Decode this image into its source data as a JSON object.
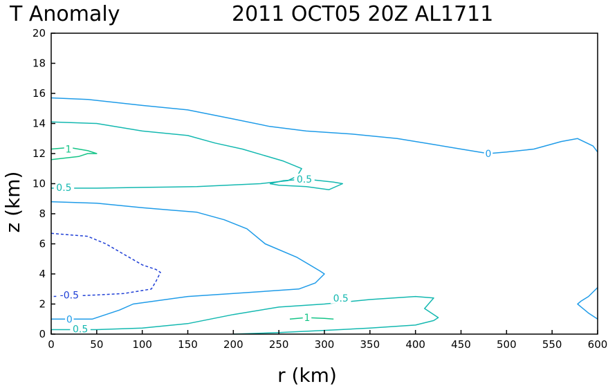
{
  "chart_data": {
    "type": "contour",
    "title": "T Anomaly",
    "subtitle": "2011 OCT05 20Z  AL1711",
    "xlabel": "r (km)",
    "ylabel": "z (km)",
    "xlim": [
      0,
      600
    ],
    "ylim": [
      0,
      20
    ],
    "xticks": [
      "0",
      "50",
      "100",
      "150",
      "200",
      "250",
      "300",
      "350",
      "400",
      "450",
      "500",
      "550",
      "600"
    ],
    "yticks": [
      "0",
      "2",
      "4",
      "6",
      "8",
      "10",
      "12",
      "14",
      "16",
      "18",
      "20"
    ],
    "grid": false,
    "colors": {
      "zero": "#1e9be8",
      "pos_0_5": "#13b8b0",
      "pos_1": "#14c487",
      "neg_0_5": "#1f3fd6"
    },
    "contours": [
      {
        "level": "0",
        "color_key": "zero",
        "dash": false,
        "points": [
          [
            0,
            15.7
          ],
          [
            40,
            15.6
          ],
          [
            100,
            15.2
          ],
          [
            150,
            14.9
          ],
          [
            200,
            14.3
          ],
          [
            240,
            13.8
          ],
          [
            280,
            13.5
          ],
          [
            330,
            13.3
          ],
          [
            380,
            13.0
          ],
          [
            420,
            12.6
          ],
          [
            450,
            12.3
          ],
          [
            480,
            12.0
          ],
          [
            500,
            12.1
          ],
          [
            530,
            12.3
          ],
          [
            560,
            12.8
          ],
          [
            578,
            13.0
          ],
          [
            595,
            12.5
          ],
          [
            600,
            12.1
          ]
        ]
      },
      {
        "level": "0",
        "color_key": "zero",
        "dash": false,
        "points": [
          [
            0,
            8.8
          ],
          [
            50,
            8.7
          ],
          [
            100,
            8.4
          ],
          [
            160,
            8.1
          ],
          [
            190,
            7.6
          ],
          [
            215,
            7.0
          ],
          [
            235,
            6.0
          ],
          [
            270,
            5.1
          ],
          [
            295,
            4.2
          ],
          [
            300,
            4.0
          ],
          [
            290,
            3.4
          ],
          [
            272,
            3.0
          ],
          [
            200,
            2.7
          ],
          [
            150,
            2.5
          ],
          [
            90,
            2.0
          ],
          [
            75,
            1.6
          ],
          [
            45,
            1.0
          ],
          [
            0,
            1.0
          ]
        ]
      },
      {
        "level": "0",
        "color_key": "zero",
        "dash": false,
        "points": [
          [
            600,
            3.1
          ],
          [
            590,
            2.5
          ],
          [
            582,
            2.2
          ],
          [
            578,
            2.0
          ],
          [
            582,
            1.8
          ],
          [
            590,
            1.4
          ],
          [
            600,
            1.0
          ]
        ]
      },
      {
        "level": "0.5",
        "color_key": "pos_0_5",
        "dash": false,
        "points": [
          [
            0,
            14.1
          ],
          [
            50,
            14.0
          ],
          [
            100,
            13.5
          ],
          [
            150,
            13.2
          ],
          [
            180,
            12.7
          ],
          [
            210,
            12.3
          ],
          [
            255,
            11.5
          ],
          [
            275,
            11.0
          ],
          [
            270,
            10.5
          ],
          [
            260,
            10.2
          ],
          [
            230,
            10.0
          ],
          [
            160,
            9.8
          ],
          [
            100,
            9.75
          ],
          [
            50,
            9.7
          ],
          [
            0,
            9.7
          ]
        ]
      },
      {
        "level": "0.5",
        "color_key": "pos_0_5",
        "dash": false,
        "points": [
          [
            240,
            10.0
          ],
          [
            255,
            10.2
          ],
          [
            280,
            10.3
          ],
          [
            310,
            10.1
          ],
          [
            320,
            10.0
          ],
          [
            305,
            9.6
          ],
          [
            280,
            9.8
          ],
          [
            250,
            9.9
          ],
          [
            240,
            10.0
          ]
        ]
      },
      {
        "level": "0.5",
        "color_key": "pos_0_5",
        "dash": false,
        "points": [
          [
            0,
            0.3
          ],
          [
            50,
            0.3
          ],
          [
            100,
            0.4
          ],
          [
            150,
            0.7
          ],
          [
            200,
            1.3
          ],
          [
            250,
            1.8
          ],
          [
            300,
            2.0
          ],
          [
            350,
            2.3
          ],
          [
            400,
            2.5
          ],
          [
            420,
            2.4
          ],
          [
            410,
            1.7
          ],
          [
            420,
            1.3
          ],
          [
            425,
            1.1
          ],
          [
            420,
            0.9
          ],
          [
            400,
            0.6
          ],
          [
            350,
            0.4
          ],
          [
            300,
            0.25
          ],
          [
            250,
            0.1
          ],
          [
            200,
            0.0
          ]
        ]
      },
      {
        "level": "1",
        "color_key": "pos_1",
        "dash": false,
        "points": [
          [
            0,
            11.6
          ],
          [
            30,
            11.8
          ],
          [
            40,
            12.0
          ],
          [
            50,
            12.0
          ],
          [
            40,
            12.2
          ],
          [
            20,
            12.4
          ],
          [
            0,
            12.3
          ]
        ]
      },
      {
        "level": "1",
        "color_key": "pos_1",
        "dash": false,
        "points": [
          [
            262,
            1.0
          ],
          [
            280,
            1.1
          ],
          [
            300,
            1.05
          ],
          [
            310,
            1.0
          ]
        ]
      },
      {
        "level": "-0.5",
        "color_key": "neg_0_5",
        "dash": true,
        "points": [
          [
            0,
            6.7
          ],
          [
            20,
            6.6
          ],
          [
            40,
            6.5
          ],
          [
            60,
            6.0
          ],
          [
            80,
            5.3
          ],
          [
            100,
            4.6
          ],
          [
            115,
            4.3
          ],
          [
            120,
            4.1
          ],
          [
            115,
            3.5
          ],
          [
            110,
            3.0
          ],
          [
            80,
            2.7
          ],
          [
            50,
            2.6
          ],
          [
            30,
            2.55
          ],
          [
            0,
            2.5
          ]
        ]
      }
    ],
    "labels": [
      {
        "text": "0",
        "x": 480,
        "y": 12.0,
        "color_key": "zero"
      },
      {
        "text": "0",
        "x": 20,
        "y": 1.0,
        "color_key": "zero"
      },
      {
        "text": "0.5",
        "x": 14,
        "y": 9.75,
        "color_key": "pos_0_5"
      },
      {
        "text": "0.5",
        "x": 278,
        "y": 10.3,
        "color_key": "pos_0_5"
      },
      {
        "text": "0.5",
        "x": 318,
        "y": 2.4,
        "color_key": "pos_0_5"
      },
      {
        "text": "0.5",
        "x": 32,
        "y": 0.35,
        "color_key": "pos_0_5"
      },
      {
        "text": "1",
        "x": 19,
        "y": 12.3,
        "color_key": "pos_1"
      },
      {
        "text": "1",
        "x": 281,
        "y": 1.1,
        "color_key": "pos_1"
      },
      {
        "text": "-0.5",
        "x": 20,
        "y": 2.6,
        "color_key": "neg_0_5"
      }
    ]
  }
}
